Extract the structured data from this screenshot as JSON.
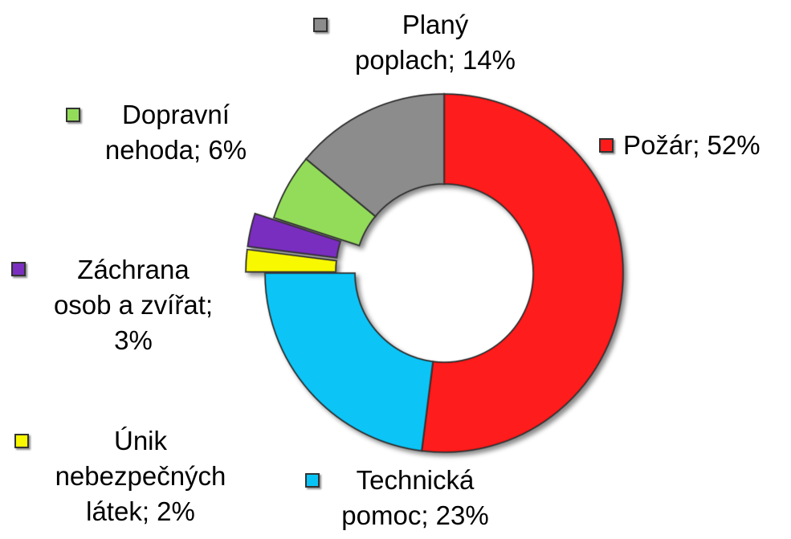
{
  "chart_data": {
    "type": "pie",
    "variant": "donut",
    "categories": [
      "Požár",
      "Technická pomoc",
      "Únik nebezpečných látek",
      "Záchrana osob a zvířat",
      "Dopravní nehoda",
      "Planý poplach"
    ],
    "values": [
      52,
      23,
      2,
      3,
      6,
      14
    ],
    "colors": [
      "#ff1a1a",
      "#08c4f6",
      "#f8f800",
      "#7a2fbf",
      "#93dc5a",
      "#8c8c8c"
    ],
    "exploded": [
      false,
      false,
      true,
      true,
      false,
      false
    ],
    "legend_position": "labels-around",
    "labels": [
      {
        "lines": [
          "Požár; 52%"
        ]
      },
      {
        "lines": [
          "Technická",
          "pomoc; 23%"
        ]
      },
      {
        "lines": [
          "Únik",
          "nebezpečných",
          "látek; 2%"
        ]
      },
      {
        "lines": [
          "Záchrana",
          "osob a zvířat;",
          "3%"
        ]
      },
      {
        "lines": [
          "Dopravní",
          "nehoda; 6%"
        ]
      },
      {
        "lines": [
          "Planý",
          "poplach; 14%"
        ]
      }
    ]
  }
}
